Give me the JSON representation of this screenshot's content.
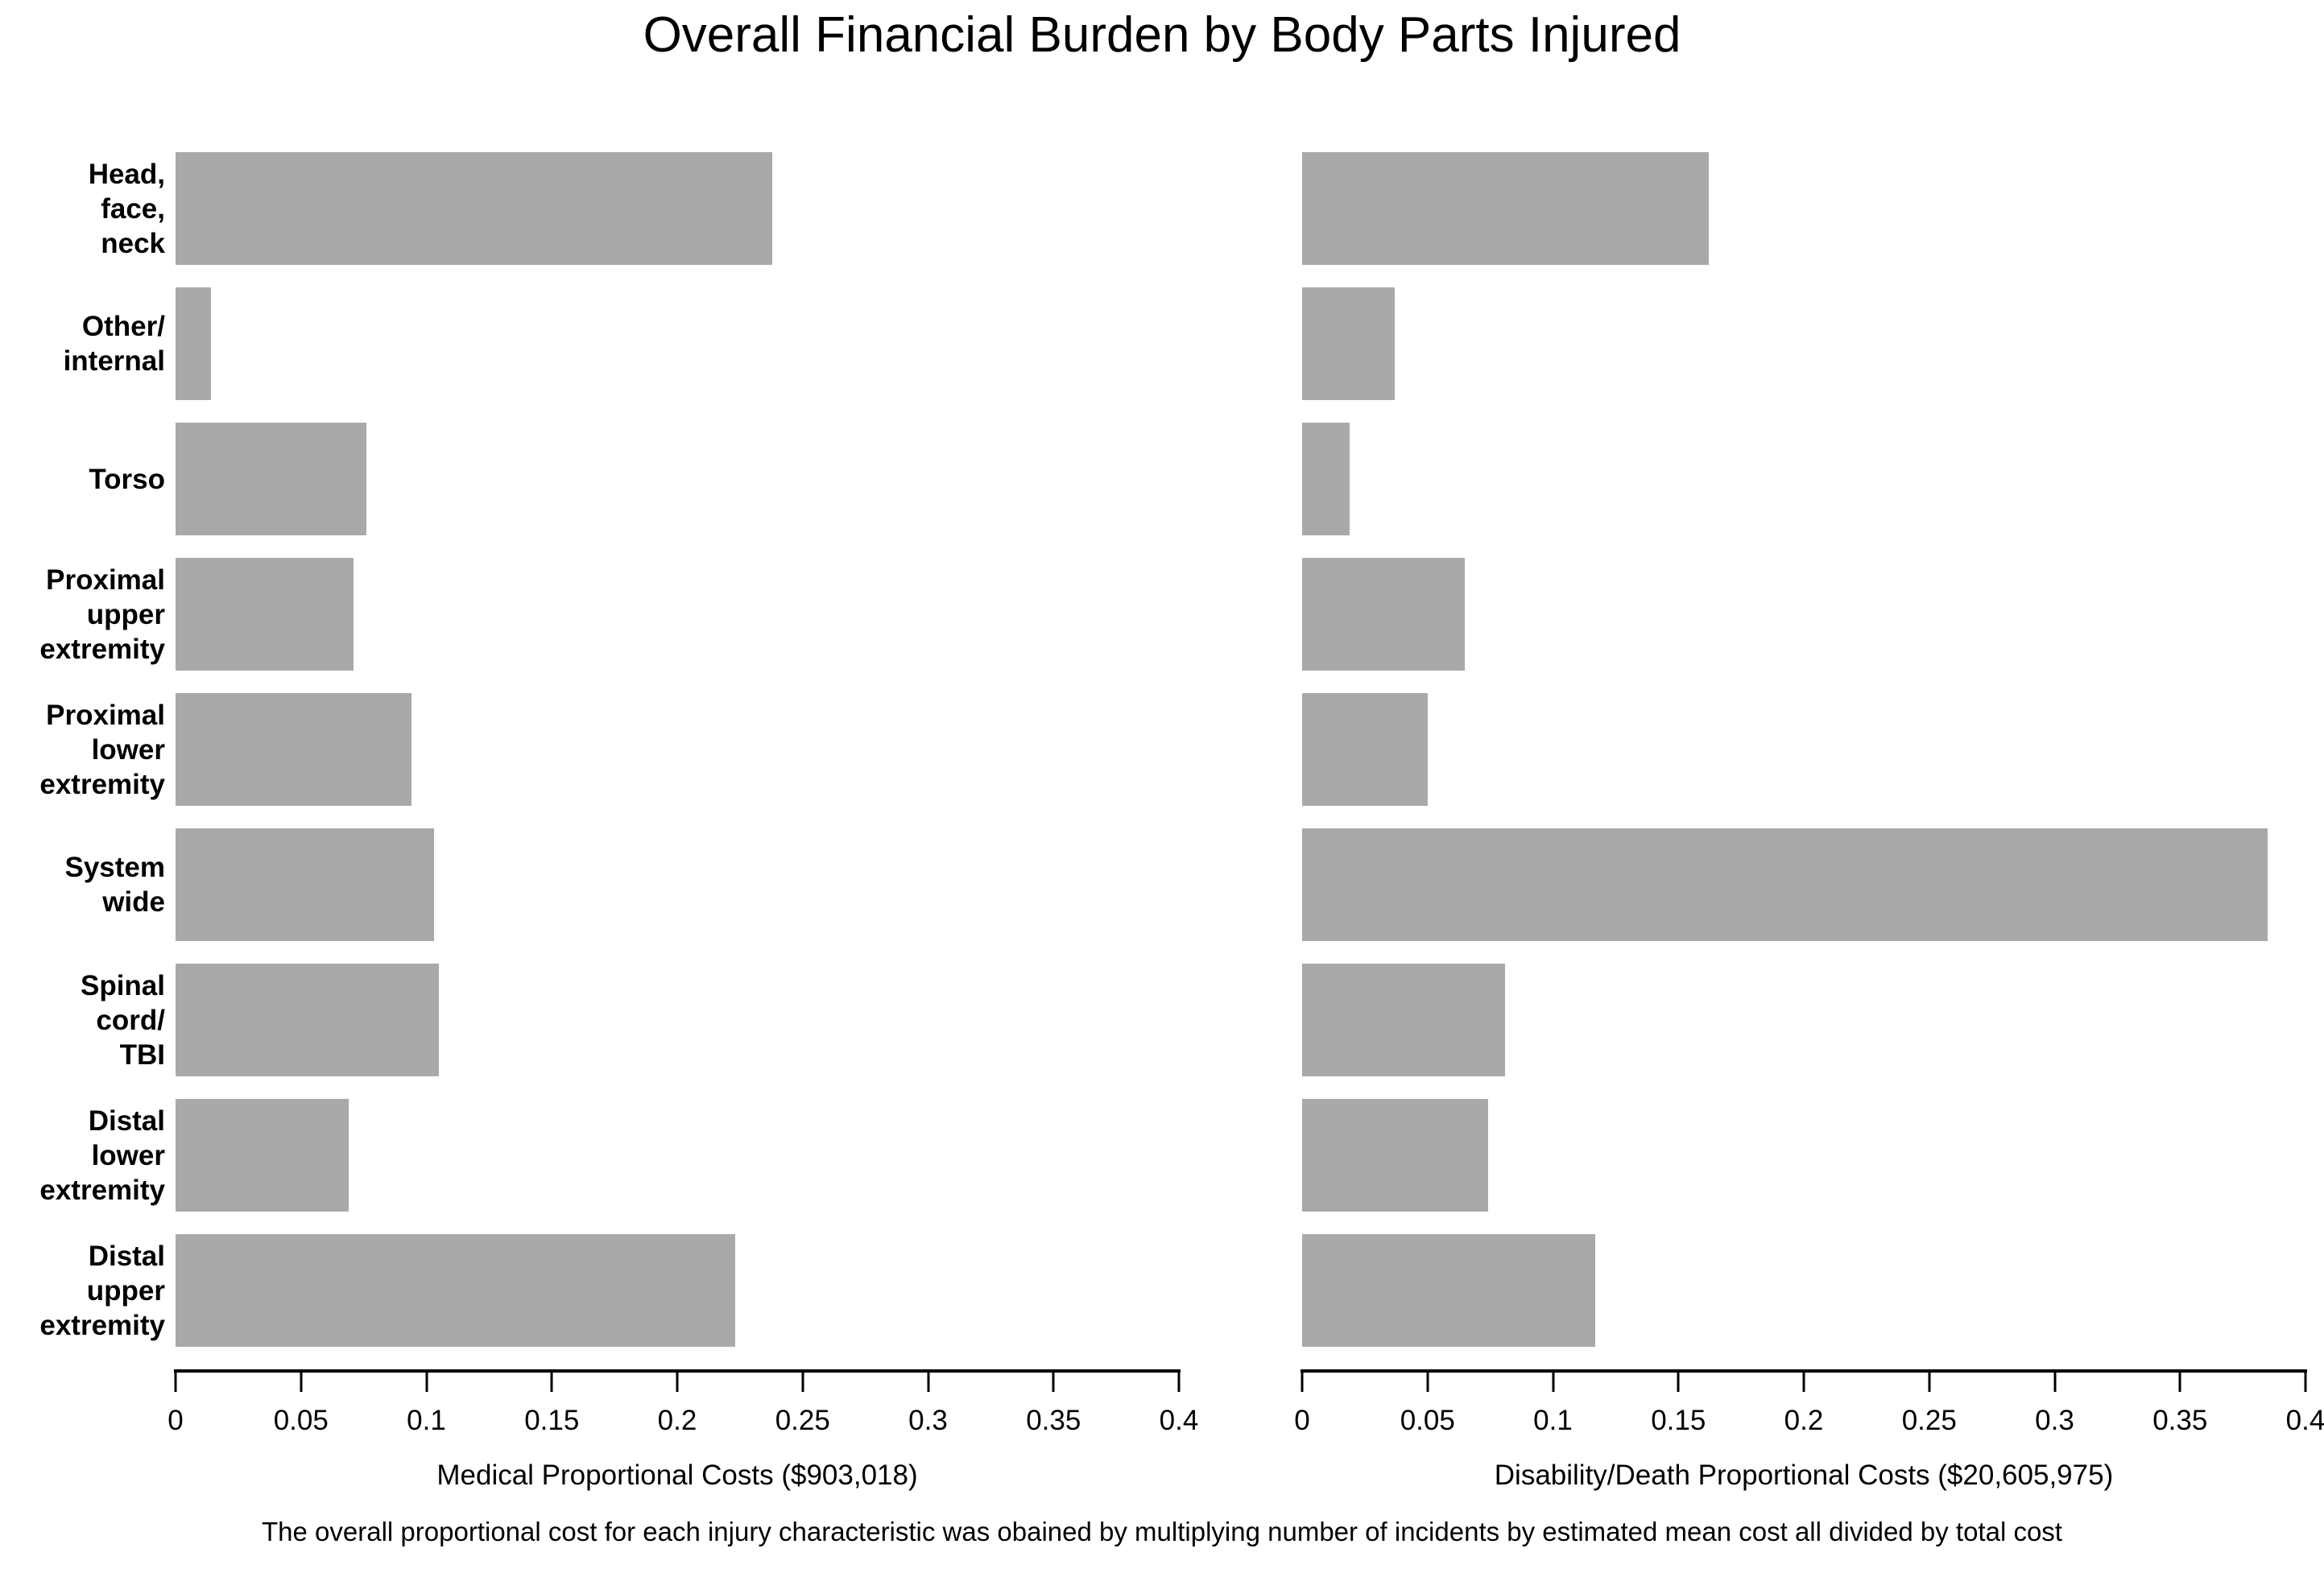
{
  "title": "Overall Financial Burden by Body Parts Injured",
  "caption": "The overall proportional cost for each injury characteristic was obained by multiplying number of incidents by estimated mean cost all divided by total cost",
  "colors": {
    "bar": "#A9A9A9",
    "axis": "#000000",
    "background": "#FFFFFF",
    "text": "#000000"
  },
  "category_label_lines": [
    [
      "Head,",
      "face,",
      "neck"
    ],
    [
      "Other/",
      "internal"
    ],
    [
      "Torso"
    ],
    [
      "Proximal",
      "upper",
      "extremity"
    ],
    [
      "Proximal",
      "lower",
      "extremity"
    ],
    [
      "System",
      "wide"
    ],
    [
      "Spinal",
      "cord/",
      "TBI"
    ],
    [
      "Distal",
      "lower",
      "extremity"
    ],
    [
      "Distal",
      "upper",
      "extremity"
    ]
  ],
  "chart_data": [
    {
      "type": "bar",
      "orientation": "horizontal",
      "panel": "left",
      "title": "",
      "categories": [
        "Head, face, neck",
        "Other/internal",
        "Torso",
        "Proximal upper extremity",
        "Proximal lower extremity",
        "System wide",
        "Spinal cord/TBI",
        "Distal lower extremity",
        "Distal upper extremity"
      ],
      "values": [
        0.238,
        0.014,
        0.076,
        0.071,
        0.094,
        0.103,
        0.105,
        0.069,
        0.223
      ],
      "xlabel": "Medical Proportional Costs ($903,018)",
      "ylabel": "",
      "xlim": [
        0,
        0.4
      ],
      "xticks": [
        0,
        0.05,
        0.1,
        0.15,
        0.2,
        0.25,
        0.3,
        0.35,
        0.4
      ],
      "xtick_labels": [
        "0",
        "0.05",
        "0.1",
        "0.15",
        "0.2",
        "0.25",
        "0.3",
        "0.35",
        "0.4"
      ],
      "grid": false,
      "legend": null
    },
    {
      "type": "bar",
      "orientation": "horizontal",
      "panel": "right",
      "title": "",
      "categories": [
        "Head, face, neck",
        "Other/internal",
        "Torso",
        "Proximal upper extremity",
        "Proximal lower extremity",
        "System wide",
        "Spinal cord/TBI",
        "Distal lower extremity",
        "Distal upper extremity"
      ],
      "values": [
        0.162,
        0.037,
        0.019,
        0.065,
        0.05,
        0.385,
        0.081,
        0.074,
        0.117
      ],
      "xlabel": "Disability/Death Proportional Costs ($20,605,975)",
      "ylabel": "",
      "xlim": [
        0,
        0.4
      ],
      "xticks": [
        0,
        0.05,
        0.1,
        0.15,
        0.2,
        0.25,
        0.3,
        0.35,
        0.4
      ],
      "xtick_labels": [
        "0",
        "0.05",
        "0.1",
        "0.15",
        "0.2",
        "0.25",
        "0.3",
        "0.35",
        "0.4"
      ],
      "grid": false,
      "legend": null
    }
  ]
}
